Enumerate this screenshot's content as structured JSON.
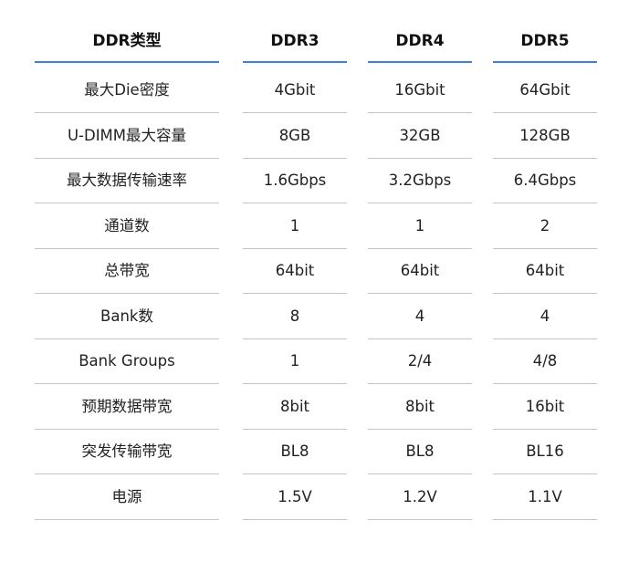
{
  "table": {
    "header": [
      "DDR类型",
      "DDR3",
      "DDR4",
      "DDR5"
    ],
    "rows": [
      [
        "最大Die密度",
        "4Gbit",
        "16Gbit",
        "64Gbit"
      ],
      [
        "U-DIMM最大容量",
        "8GB",
        "32GB",
        "128GB"
      ],
      [
        "最大数据传输速率",
        "1.6Gbps",
        "3.2Gbps",
        "6.4Gbps"
      ],
      [
        "通道数",
        "1",
        "1",
        "2"
      ],
      [
        "总带宽",
        "64bit",
        "64bit",
        "64bit"
      ],
      [
        "Bank数",
        "8",
        "4",
        "4"
      ],
      [
        "Bank Groups",
        "1",
        "2/4",
        "4/8"
      ],
      [
        "预期数据带宽",
        "8bit",
        "8bit",
        "16bit"
      ],
      [
        "突发传输带宽",
        "BL8",
        "BL8",
        "BL16"
      ],
      [
        "电源",
        "1.5V",
        "1.2V",
        "1.1V"
      ]
    ]
  }
}
